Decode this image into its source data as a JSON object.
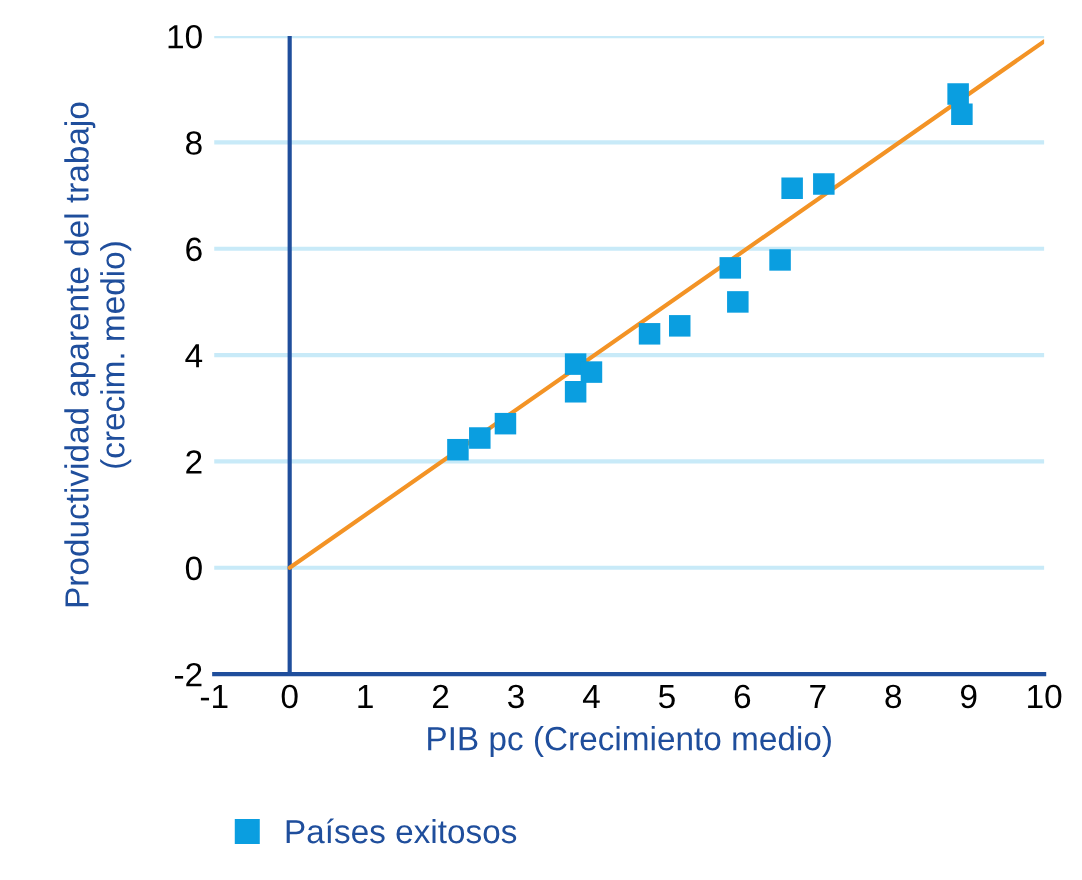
{
  "chart_data": {
    "type": "scatter",
    "xlabel": "PIB pc (Crecimiento medio)",
    "ylabel": "Productividad aparente del trabajo\n(crecim. medio)",
    "series": [
      {
        "name": "Países exitosos",
        "color": "#0a9ee0",
        "marker": "square",
        "x": [
          2.23,
          2.52,
          2.86,
          3.79,
          3.79,
          4.0,
          4.77,
          5.17,
          5.84,
          5.94,
          6.5,
          6.66,
          7.08,
          8.86,
          8.91
        ],
        "values": [
          2.22,
          2.44,
          2.71,
          3.83,
          3.31,
          3.68,
          4.4,
          4.55,
          5.64,
          5.0,
          5.79,
          7.14,
          7.22,
          8.91,
          8.53
        ]
      },
      {
        "type": "line",
        "color": "#f39325",
        "x": [
          0,
          10
        ],
        "values": [
          0,
          9.9
        ]
      }
    ],
    "xlim": [
      -1,
      10
    ],
    "xticks": [
      -1,
      0,
      1,
      2,
      3,
      4,
      5,
      6,
      7,
      8,
      9,
      10
    ],
    "ylim": [
      -2,
      10
    ],
    "yticks": [
      -2,
      0,
      2,
      4,
      6,
      8,
      10
    ],
    "ref_lines": [
      {
        "axis": "x",
        "value": 0,
        "color": "#1f4e9c"
      }
    ],
    "grid": "y",
    "legend": "bottom left"
  }
}
